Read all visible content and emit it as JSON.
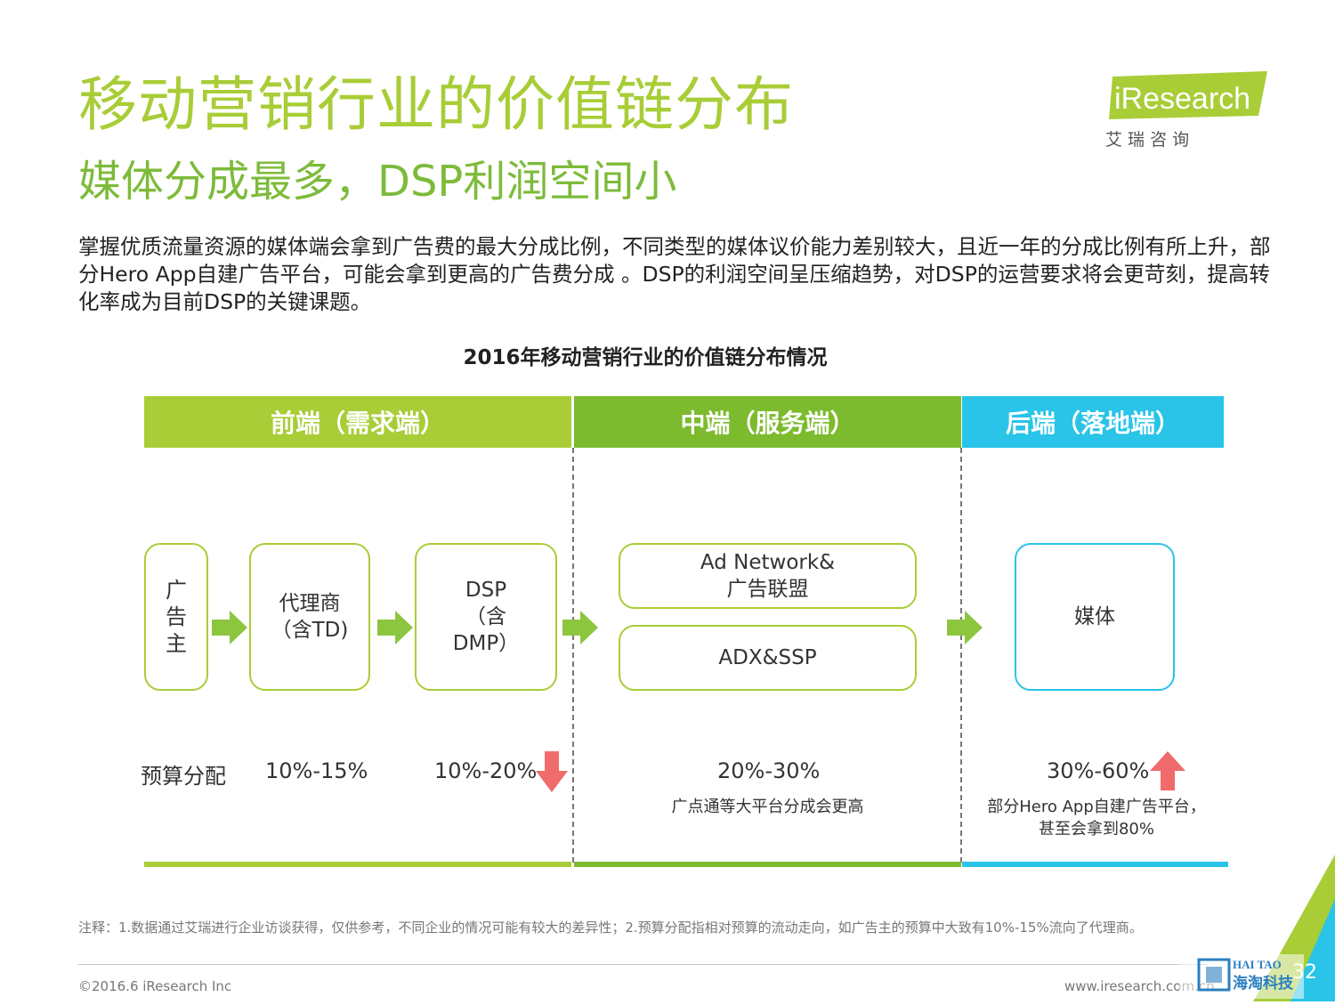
{
  "header": {
    "title": "移动营销行业的价值链分布",
    "subtitle": "媒体分成最多，DSP利润空间小",
    "intro": "掌握优质流量资源的媒体端会拿到广告费的最大分成比例，不同类型的媒体议价能力差别较大，且近一年的分成比例有所上升，部分Hero App自建广告平台，可能会拿到更高的广告费分成 。DSP的利润空间呈压缩趋势，对DSP的运营要求将会更苛刻，提高转化率成为目前DSP的关键课题。"
  },
  "logo": {
    "brand": "iResearch",
    "cn": "艾 瑞 咨 询"
  },
  "diagram": {
    "title": "2016年移动营销行业的价值链分布情况",
    "segments": [
      {
        "label": "前端（需求端）",
        "color": "#a8cd37"
      },
      {
        "label": "中端（服务端）",
        "color": "#7dbb2e"
      },
      {
        "label": "后端（落地端）",
        "color": "#29c4e8"
      }
    ],
    "nodes": {
      "advertiser": [
        "广",
        "告",
        "主"
      ],
      "agency": [
        "代理商",
        "（含TD)"
      ],
      "dsp": [
        "DSP",
        "（含",
        "DMP）"
      ],
      "adnetwork": [
        "Ad Network&",
        "广告联盟"
      ],
      "adx": "ADX&SSP",
      "media": "媒体"
    },
    "budget_label": "预算分配",
    "shares": {
      "agency": "10%-15%",
      "dsp": "10%-20%",
      "mid": "20%-30%",
      "media": "30%-60%"
    },
    "notes": {
      "mid": "广点通等大平台分成会更高",
      "media": [
        "部分Hero App自建广告平台，",
        "甚至会拿到80%"
      ]
    },
    "trend_colors": {
      "down": "#f06b6b",
      "up": "#f06b6b"
    }
  },
  "footer": {
    "footnote": "注释：1.数据通过艾瑞进行企业访谈获得，仅供参考，不同企业的情况可能有较大的差异性；2.预算分配指相对预算的流动走向，如广告主的预算中大致有10%-15%流向了代理商。",
    "copyright": "©2016.6 iResearch Inc",
    "website": "www.iresearch.com.cn",
    "page_number": "32",
    "watermark": [
      "HAI TAO",
      "海淘科技"
    ]
  }
}
